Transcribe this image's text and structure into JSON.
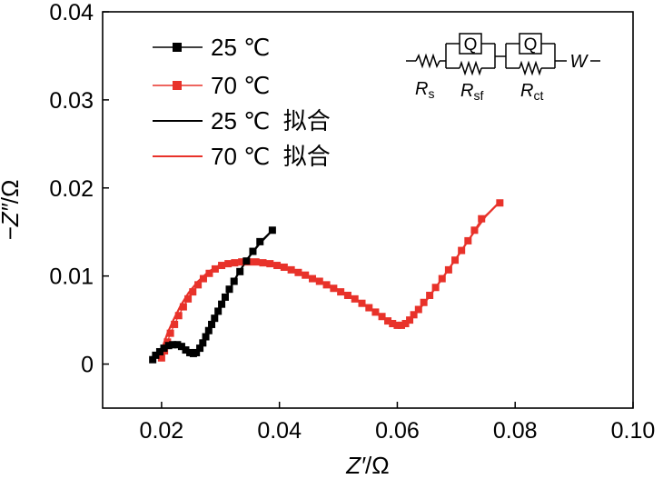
{
  "chart_data": {
    "type": "scatter",
    "xlabel_var": "Z′",
    "xlabel_unit": "/Ω",
    "ylabel_var": "−Z″",
    "ylabel_unit": "/Ω",
    "xlim": [
      0.01,
      0.1
    ],
    "ylim": [
      -0.005,
      0.04
    ],
    "x_ticks": [
      {
        "value": 0.02,
        "label": "0.02"
      },
      {
        "value": 0.04,
        "label": "0.04"
      },
      {
        "value": 0.06,
        "label": "0.06"
      },
      {
        "value": 0.08,
        "label": "0.08"
      },
      {
        "value": 0.1,
        "label": "0.10"
      }
    ],
    "y_ticks": [
      {
        "value": 0,
        "label": "0"
      },
      {
        "value": 0.01,
        "label": "0.01"
      },
      {
        "value": 0.02,
        "label": "0.02"
      },
      {
        "value": 0.03,
        "label": "0.03"
      },
      {
        "value": 0.04,
        "label": "0.04"
      }
    ],
    "grid": false,
    "legend_position": "top-left",
    "series": [
      {
        "name": "25 ℃",
        "kind": "markers",
        "marker": "square",
        "color": "#000000",
        "points": [
          [
            0.0185,
            0.0005
          ],
          [
            0.019,
            0.001
          ],
          [
            0.0197,
            0.0014
          ],
          [
            0.0204,
            0.0018
          ],
          [
            0.0212,
            0.0021
          ],
          [
            0.0219,
            0.0022
          ],
          [
            0.0227,
            0.0022
          ],
          [
            0.0234,
            0.002
          ],
          [
            0.0241,
            0.0016
          ],
          [
            0.0248,
            0.0013
          ],
          [
            0.0254,
            0.0012
          ],
          [
            0.0259,
            0.0013
          ],
          [
            0.0265,
            0.0018
          ],
          [
            0.027,
            0.0024
          ],
          [
            0.0275,
            0.0031
          ],
          [
            0.028,
            0.0038
          ],
          [
            0.0285,
            0.0045
          ],
          [
            0.029,
            0.0052
          ],
          [
            0.0296,
            0.006
          ],
          [
            0.0302,
            0.0068
          ],
          [
            0.0308,
            0.0076
          ],
          [
            0.0315,
            0.0085
          ],
          [
            0.0323,
            0.0094
          ],
          [
            0.0333,
            0.0105
          ],
          [
            0.0344,
            0.0117
          ],
          [
            0.0355,
            0.0128
          ],
          [
            0.0367,
            0.0139
          ],
          [
            0.0388,
            0.0152
          ]
        ]
      },
      {
        "name": "70 ℃",
        "kind": "markers",
        "marker": "square",
        "color": "#e8322a",
        "points": [
          [
            0.02,
            0.0007
          ],
          [
            0.0205,
            0.0015
          ],
          [
            0.021,
            0.0025
          ],
          [
            0.0215,
            0.0035
          ],
          [
            0.0222,
            0.0045
          ],
          [
            0.0229,
            0.0055
          ],
          [
            0.0237,
            0.0065
          ],
          [
            0.0245,
            0.0074
          ],
          [
            0.0253,
            0.0082
          ],
          [
            0.0262,
            0.009
          ],
          [
            0.0271,
            0.0097
          ],
          [
            0.0281,
            0.0103
          ],
          [
            0.0291,
            0.0108
          ],
          [
            0.0302,
            0.0112
          ],
          [
            0.0313,
            0.0114
          ],
          [
            0.0324,
            0.0115
          ],
          [
            0.0336,
            0.0116
          ],
          [
            0.0348,
            0.0116
          ],
          [
            0.036,
            0.0116
          ],
          [
            0.0372,
            0.0115
          ],
          [
            0.0384,
            0.0114
          ],
          [
            0.0396,
            0.0112
          ],
          [
            0.0408,
            0.011
          ],
          [
            0.042,
            0.0107
          ],
          [
            0.0432,
            0.0104
          ],
          [
            0.0444,
            0.0101
          ],
          [
            0.0456,
            0.0097
          ],
          [
            0.0468,
            0.0094
          ],
          [
            0.048,
            0.009
          ],
          [
            0.0492,
            0.0086
          ],
          [
            0.0504,
            0.0082
          ],
          [
            0.0516,
            0.0078
          ],
          [
            0.0528,
            0.0074
          ],
          [
            0.054,
            0.0069
          ],
          [
            0.0552,
            0.0064
          ],
          [
            0.0563,
            0.0059
          ],
          [
            0.0574,
            0.0054
          ],
          [
            0.0584,
            0.0049
          ],
          [
            0.0592,
            0.0046
          ],
          [
            0.06,
            0.0044
          ],
          [
            0.0607,
            0.0044
          ],
          [
            0.0614,
            0.0046
          ],
          [
            0.0621,
            0.005
          ],
          [
            0.0628,
            0.0056
          ],
          [
            0.0636,
            0.0062
          ],
          [
            0.0645,
            0.007
          ],
          [
            0.0655,
            0.0078
          ],
          [
            0.0665,
            0.0087
          ],
          [
            0.0676,
            0.0097
          ],
          [
            0.0687,
            0.0107
          ],
          [
            0.0698,
            0.0118
          ],
          [
            0.0709,
            0.0129
          ],
          [
            0.072,
            0.014
          ],
          [
            0.0731,
            0.0152
          ],
          [
            0.0743,
            0.0165
          ],
          [
            0.0774,
            0.0183
          ]
        ]
      },
      {
        "name": "25 ℃  拟合",
        "kind": "line",
        "color": "#000000",
        "points": [
          [
            0.0185,
            0.0005
          ],
          [
            0.0192,
            0.0012
          ],
          [
            0.02,
            0.0017
          ],
          [
            0.021,
            0.0021
          ],
          [
            0.022,
            0.0023
          ],
          [
            0.023,
            0.0022
          ],
          [
            0.024,
            0.0018
          ],
          [
            0.0249,
            0.0014
          ],
          [
            0.0257,
            0.0014
          ],
          [
            0.0264,
            0.0018
          ],
          [
            0.0272,
            0.0027
          ],
          [
            0.0282,
            0.004
          ],
          [
            0.0294,
            0.0056
          ],
          [
            0.0308,
            0.0075
          ],
          [
            0.0325,
            0.0097
          ],
          [
            0.0345,
            0.0119
          ],
          [
            0.0368,
            0.0138
          ],
          [
            0.0388,
            0.0152
          ]
        ]
      },
      {
        "name": "70 ℃  拟合",
        "kind": "line",
        "color": "#e8322a",
        "points": [
          [
            0.0195,
            0.0007
          ],
          [
            0.0202,
            0.002
          ],
          [
            0.021,
            0.0035
          ],
          [
            0.022,
            0.005
          ],
          [
            0.0232,
            0.0066
          ],
          [
            0.0246,
            0.0081
          ],
          [
            0.0262,
            0.0094
          ],
          [
            0.028,
            0.0105
          ],
          [
            0.03,
            0.0113
          ],
          [
            0.0322,
            0.0117
          ],
          [
            0.0345,
            0.0118
          ],
          [
            0.037,
            0.0116
          ],
          [
            0.0395,
            0.0112
          ],
          [
            0.042,
            0.0107
          ],
          [
            0.0445,
            0.0101
          ],
          [
            0.047,
            0.0094
          ],
          [
            0.0495,
            0.0086
          ],
          [
            0.052,
            0.0077
          ],
          [
            0.0545,
            0.0067
          ],
          [
            0.0568,
            0.0056
          ],
          [
            0.0588,
            0.0047
          ],
          [
            0.0603,
            0.0043
          ],
          [
            0.0616,
            0.0046
          ],
          [
            0.063,
            0.0056
          ],
          [
            0.065,
            0.0073
          ],
          [
            0.0675,
            0.0096
          ],
          [
            0.07,
            0.012
          ],
          [
            0.0725,
            0.0145
          ],
          [
            0.075,
            0.0168
          ],
          [
            0.0775,
            0.0185
          ]
        ]
      }
    ],
    "inset_circuit": {
      "labels": {
        "rs_main": "R",
        "rs_sub": "s",
        "rsf_main": "R",
        "rsf_sub": "sf",
        "rct_main": "R",
        "rct_sub": "ct",
        "q1": "Q",
        "q2": "Q",
        "w": "W"
      }
    }
  }
}
